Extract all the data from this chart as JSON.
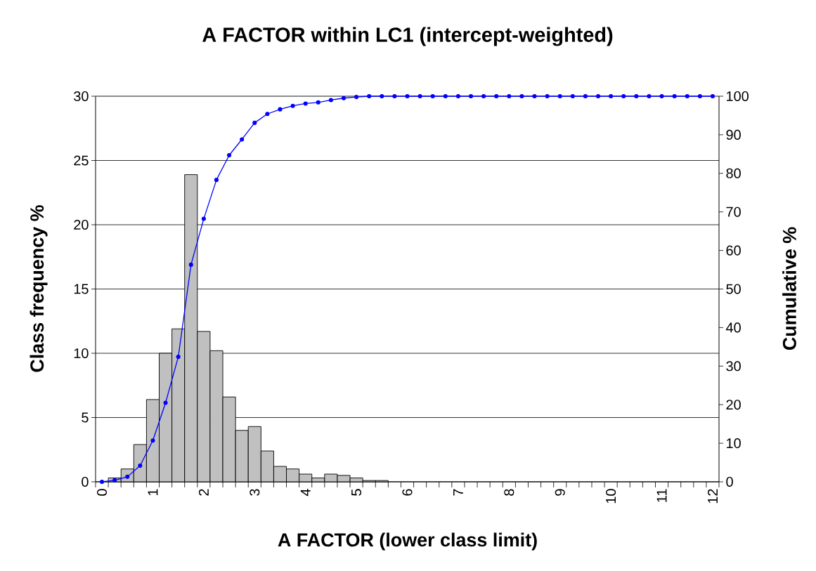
{
  "chart_data": {
    "type": "bar",
    "title": "A FACTOR within LC1 (intercept-weighted)",
    "xlabel": "A FACTOR (lower class limit)",
    "ylabel": "Class frequency %",
    "y2label": "Cumulative %",
    "categories": [
      "0",
      null,
      null,
      null,
      "1",
      null,
      null,
      null,
      "2",
      null,
      null,
      null,
      "3",
      null,
      null,
      null,
      "4",
      null,
      null,
      null,
      "5",
      null,
      null,
      null,
      "6",
      null,
      null,
      null,
      "7",
      null,
      null,
      null,
      "8",
      null,
      null,
      null,
      "9",
      null,
      null,
      null,
      "10",
      null,
      null,
      null,
      "11",
      null,
      null,
      null,
      "12"
    ],
    "series": [
      {
        "color": "#c0c0c0",
        "values": [
          null,
          0.3,
          1.0,
          2.9,
          6.4,
          10.0,
          11.9,
          23.9,
          11.7,
          10.2,
          6.6,
          4.0,
          4.3,
          2.4,
          1.2,
          1.0,
          0.6,
          0.3,
          0.6,
          0.5,
          0.3,
          0.1,
          0.1,
          null,
          null,
          null,
          null,
          null,
          null,
          null,
          null,
          null,
          null,
          null,
          null,
          null,
          null,
          null,
          null,
          null,
          null,
          null,
          null,
          null,
          null,
          null,
          null,
          null,
          null
        ]
      },
      {
        "type": "line",
        "axis": "y2",
        "color": "#0000ff",
        "values": [
          0,
          0.4,
          1.3,
          4.2,
          10.7,
          20.5,
          32.4,
          56.3,
          68.2,
          78.3,
          84.7,
          88.8,
          93.1,
          95.4,
          96.6,
          97.5,
          98.1,
          98.4,
          99.0,
          99.5,
          99.8,
          100,
          100,
          100,
          100,
          100,
          100,
          100,
          100,
          100,
          100,
          100,
          100,
          100,
          100,
          100,
          100,
          100,
          100,
          100,
          100,
          100,
          100,
          100,
          100,
          100,
          100,
          100,
          100
        ]
      }
    ],
    "ylim": [
      0,
      30
    ],
    "yticks": [
      0,
      5,
      10,
      15,
      20,
      25,
      30
    ],
    "y2lim": [
      0,
      100
    ],
    "y2ticks": [
      0,
      10,
      20,
      30,
      40,
      50,
      60,
      70,
      80,
      90,
      100
    ],
    "grid": "y",
    "marker": "circle"
  }
}
